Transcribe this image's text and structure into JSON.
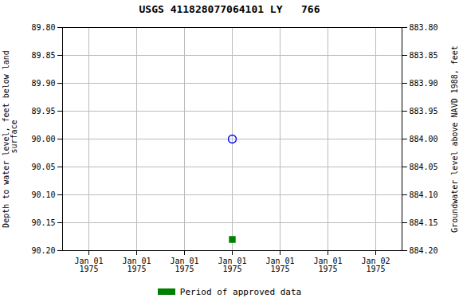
{
  "chart_data": {
    "type": "scatter",
    "title": "USGS 411828077064101 LY   766",
    "ylabel": "Depth to water level, feet below land\n surface",
    "y2label": "Groundwater level above NAVD 1988, feet",
    "categories": [
      "Jan 01\n1975",
      "Jan 01\n1975",
      "Jan 01\n1975",
      "Jan 01\n1975",
      "Jan 01\n1975",
      "Jan 01\n1975",
      "Jan 02\n1975"
    ],
    "series": [
      {
        "values": [
          null,
          null,
          null,
          90.0,
          null,
          null,
          null
        ],
        "color": "blue",
        "marker": "open_circle"
      },
      {
        "name": "Period of approved data",
        "values": [
          null,
          null,
          null,
          90.18,
          null,
          null,
          null
        ],
        "color": "green",
        "marker": "square"
      }
    ],
    "ylim": [
      90.2,
      89.8
    ],
    "yticks": [
      {
        "value": 89.8,
        "label": "89.80"
      },
      89.85,
      {
        "value": 89.9,
        "label": "89.90"
      },
      89.95,
      {
        "value": 90.0,
        "label": "90.00"
      },
      90.05,
      {
        "value": 90.1,
        "label": "90.10"
      },
      90.15,
      {
        "value": 90.2,
        "label": "90.20"
      }
    ],
    "y2lim": [
      884.2,
      883.8
    ],
    "y2ticks": [
      {
        "value": 884.2,
        "label": "884.20"
      },
      884.15,
      {
        "value": 884.1,
        "label": "884.10"
      },
      884.05,
      {
        "value": 884.0,
        "label": "884.00"
      },
      883.95,
      {
        "value": 883.9,
        "label": "883.90"
      },
      883.85,
      {
        "value": 883.8,
        "label": "883.80"
      }
    ],
    "grid": true,
    "legend": "bottom"
  }
}
